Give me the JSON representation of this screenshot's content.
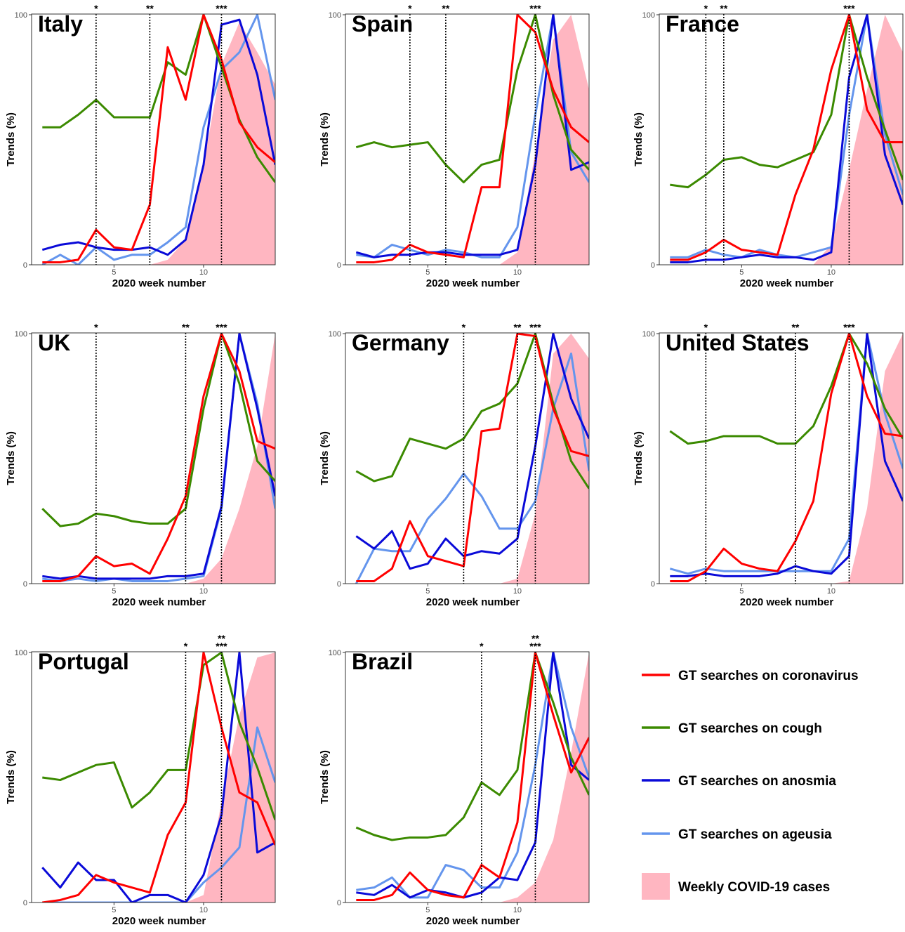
{
  "legend": [
    {
      "key": "coronavirus",
      "label": "GT searches on coronavirus",
      "color": "#ff0000",
      "type": "line"
    },
    {
      "key": "cough",
      "label": "GT searches on cough",
      "color": "#3b8a00",
      "type": "line"
    },
    {
      "key": "anosmia",
      "label": "GT searches on anosmia",
      "color": "#0a0ad8",
      "type": "line"
    },
    {
      "key": "ageusia",
      "label": "GT searches on ageusia",
      "color": "#6495ed",
      "type": "line"
    },
    {
      "key": "cases",
      "label": "Weekly COVID-19 cases",
      "color": "#ffb6c1",
      "type": "area"
    }
  ],
  "chart_data": [
    {
      "type": "line",
      "title": "Italy",
      "xlabel": "2020 week number",
      "ylabel": "Trends (%)",
      "xlim": [
        1,
        14
      ],
      "ylim": [
        0,
        100
      ],
      "x_ticks": [
        5,
        10
      ],
      "y_ticks": [
        0,
        100
      ],
      "x": [
        1,
        2,
        3,
        4,
        5,
        6,
        7,
        8,
        9,
        10,
        11,
        12,
        13,
        14
      ],
      "markers": [
        {
          "week": 4,
          "label": "*"
        },
        {
          "week": 7,
          "label": "**"
        },
        {
          "week": 11,
          "label": "***"
        }
      ],
      "series": [
        {
          "key": "cases",
          "values": [
            0,
            0,
            0,
            0,
            0,
            0,
            0,
            2,
            10,
            40,
            80,
            97,
            85,
            72
          ]
        },
        {
          "key": "ageusia",
          "values": [
            0,
            4,
            0,
            7,
            2,
            4,
            4,
            9,
            15,
            55,
            78,
            85,
            100,
            66
          ]
        },
        {
          "key": "anosmia",
          "values": [
            6,
            8,
            9,
            7,
            6,
            6,
            7,
            4,
            10,
            40,
            96,
            98,
            76,
            40
          ]
        },
        {
          "key": "cough",
          "values": [
            55,
            55,
            60,
            66,
            59,
            59,
            59,
            81,
            76,
            100,
            79,
            58,
            43,
            33
          ]
        },
        {
          "key": "coronavirus",
          "values": [
            1,
            1,
            2,
            14,
            7,
            6,
            24,
            87,
            66,
            100,
            82,
            57,
            47,
            41
          ]
        }
      ]
    },
    {
      "type": "line",
      "title": "Spain",
      "xlabel": "2020 week number",
      "ylabel": "Trends (%)",
      "xlim": [
        1,
        14
      ],
      "ylim": [
        0,
        100
      ],
      "x_ticks": [
        5,
        10
      ],
      "y_ticks": [
        0,
        100
      ],
      "x": [
        1,
        2,
        3,
        4,
        5,
        6,
        7,
        8,
        9,
        10,
        11,
        12,
        13,
        14
      ],
      "markers": [
        {
          "week": 4,
          "label": "*"
        },
        {
          "week": 6,
          "label": "**"
        },
        {
          "week": 11,
          "label": "***"
        }
      ],
      "series": [
        {
          "key": "cases",
          "values": [
            0,
            0,
            0,
            0,
            0,
            0,
            0,
            0,
            0,
            5,
            45,
            90,
            100,
            70
          ]
        },
        {
          "key": "ageusia",
          "values": [
            4,
            3,
            8,
            6,
            4,
            6,
            5,
            3,
            3,
            15,
            60,
            100,
            45,
            33
          ]
        },
        {
          "key": "anosmia",
          "values": [
            5,
            3,
            4,
            4,
            5,
            5,
            4,
            4,
            4,
            6,
            40,
            100,
            38,
            41
          ]
        },
        {
          "key": "cough",
          "values": [
            47,
            49,
            47,
            48,
            49,
            40,
            33,
            40,
            42,
            78,
            100,
            68,
            46,
            38
          ]
        },
        {
          "key": "coronavirus",
          "values": [
            1,
            1,
            2,
            8,
            5,
            4,
            3,
            31,
            31,
            100,
            93,
            70,
            55,
            49
          ]
        }
      ]
    },
    {
      "type": "line",
      "title": "France",
      "xlabel": "2020 week number",
      "ylabel": "Trends (%)",
      "xlim": [
        1,
        14
      ],
      "ylim": [
        0,
        100
      ],
      "x_ticks": [
        5,
        10
      ],
      "y_ticks": [
        0,
        100
      ],
      "x": [
        1,
        2,
        3,
        4,
        5,
        6,
        7,
        8,
        9,
        10,
        11,
        12,
        13,
        14
      ],
      "markers": [
        {
          "week": 3,
          "label": "*"
        },
        {
          "week": 4,
          "label": "**"
        },
        {
          "week": 11,
          "label": "***"
        }
      ],
      "series": [
        {
          "key": "cases",
          "values": [
            0,
            0,
            0,
            0,
            0,
            0,
            0,
            0,
            0,
            8,
            38,
            70,
            100,
            85
          ]
        },
        {
          "key": "ageusia",
          "values": [
            3,
            3,
            6,
            4,
            3,
            6,
            4,
            3,
            5,
            7,
            60,
            100,
            52,
            28
          ]
        },
        {
          "key": "anosmia",
          "values": [
            1,
            1,
            2,
            2,
            3,
            4,
            3,
            3,
            2,
            5,
            75,
            100,
            44,
            24
          ]
        },
        {
          "key": "cough",
          "values": [
            32,
            31,
            36,
            42,
            43,
            40,
            39,
            42,
            45,
            60,
            100,
            75,
            54,
            34
          ]
        },
        {
          "key": "coronavirus",
          "values": [
            2,
            2,
            5,
            10,
            6,
            5,
            4,
            28,
            46,
            78,
            100,
            62,
            49,
            49
          ]
        }
      ]
    },
    {
      "type": "line",
      "title": "UK",
      "xlabel": "2020 week number",
      "ylabel": "Trends (%)",
      "xlim": [
        1,
        14
      ],
      "ylim": [
        0,
        100
      ],
      "x_ticks": [
        5,
        10
      ],
      "y_ticks": [
        0,
        100
      ],
      "x": [
        1,
        2,
        3,
        4,
        5,
        6,
        7,
        8,
        9,
        10,
        11,
        12,
        13,
        14
      ],
      "markers": [
        {
          "week": 4,
          "label": "*"
        },
        {
          "week": 9,
          "label": "**"
        },
        {
          "week": 11,
          "label": "***"
        }
      ],
      "series": [
        {
          "key": "cases",
          "values": [
            0,
            0,
            0,
            0,
            0,
            0,
            0,
            0,
            0,
            2,
            10,
            30,
            55,
            100
          ]
        },
        {
          "key": "ageusia",
          "values": [
            2,
            1,
            2,
            1,
            2,
            1,
            1,
            1,
            2,
            3,
            30,
            100,
            72,
            30
          ]
        },
        {
          "key": "anosmia",
          "values": [
            3,
            2,
            3,
            2,
            2,
            2,
            2,
            3,
            3,
            4,
            31,
            100,
            70,
            35
          ]
        },
        {
          "key": "cough",
          "values": [
            30,
            23,
            24,
            28,
            27,
            25,
            24,
            24,
            30,
            70,
            100,
            80,
            49,
            41
          ]
        },
        {
          "key": "coronavirus",
          "values": [
            1,
            1,
            3,
            11,
            7,
            8,
            4,
            18,
            35,
            75,
            100,
            85,
            57,
            54
          ]
        }
      ]
    },
    {
      "type": "line",
      "title": "Germany",
      "xlabel": "2020 week number",
      "ylabel": "Trends (%)",
      "xlim": [
        1,
        14
      ],
      "ylim": [
        0,
        100
      ],
      "x_ticks": [
        5,
        10
      ],
      "y_ticks": [
        0,
        100
      ],
      "x": [
        1,
        2,
        3,
        4,
        5,
        6,
        7,
        8,
        9,
        10,
        11,
        12,
        13,
        14
      ],
      "markers": [
        {
          "week": 7,
          "label": "*"
        },
        {
          "week": 10,
          "label": "**"
        },
        {
          "week": 11,
          "label": "***"
        }
      ],
      "series": [
        {
          "key": "cases",
          "values": [
            0,
            0,
            0,
            0,
            0,
            0,
            0,
            0,
            0,
            2,
            28,
            92,
            100,
            90
          ]
        },
        {
          "key": "ageusia",
          "values": [
            0,
            14,
            13,
            13,
            26,
            34,
            44,
            35,
            22,
            22,
            33,
            70,
            92,
            45
          ]
        },
        {
          "key": "anosmia",
          "values": [
            19,
            14,
            21,
            6,
            8,
            18,
            11,
            13,
            12,
            18,
            55,
            100,
            74,
            58
          ]
        },
        {
          "key": "cough",
          "values": [
            45,
            41,
            43,
            58,
            56,
            54,
            58,
            69,
            72,
            80,
            100,
            72,
            49,
            38
          ]
        },
        {
          "key": "coronavirus",
          "values": [
            1,
            1,
            6,
            25,
            11,
            9,
            7,
            61,
            62,
            100,
            99,
            70,
            53,
            51
          ]
        }
      ]
    },
    {
      "type": "line",
      "title": "United States",
      "xlabel": "2020 week number",
      "ylabel": "Trends (%)",
      "xlim": [
        1,
        14
      ],
      "ylim": [
        0,
        100
      ],
      "x_ticks": [
        5,
        10
      ],
      "y_ticks": [
        0,
        100
      ],
      "x": [
        1,
        2,
        3,
        4,
        5,
        6,
        7,
        8,
        9,
        10,
        11,
        12,
        13,
        14
      ],
      "markers": [
        {
          "week": 3,
          "label": "*"
        },
        {
          "week": 8,
          "label": "**"
        },
        {
          "week": 11,
          "label": "***"
        }
      ],
      "series": [
        {
          "key": "cases",
          "values": [
            0,
            0,
            0,
            0,
            0,
            0,
            0,
            0,
            0,
            0,
            1,
            30,
            85,
            100
          ]
        },
        {
          "key": "ageusia",
          "values": [
            6,
            4,
            6,
            5,
            5,
            5,
            5,
            5,
            5,
            5,
            18,
            100,
            68,
            46
          ]
        },
        {
          "key": "anosmia",
          "values": [
            3,
            3,
            4,
            3,
            3,
            3,
            4,
            7,
            5,
            4,
            11,
            100,
            49,
            33
          ]
        },
        {
          "key": "cough",
          "values": [
            61,
            56,
            57,
            59,
            59,
            59,
            56,
            56,
            63,
            79,
            100,
            88,
            70,
            58
          ]
        },
        {
          "key": "coronavirus",
          "values": [
            1,
            1,
            5,
            14,
            8,
            6,
            5,
            17,
            33,
            76,
            100,
            75,
            60,
            59
          ]
        }
      ]
    },
    {
      "type": "line",
      "title": "Portugal",
      "xlabel": "2020 week number",
      "ylabel": "Trends (%)",
      "xlim": [
        1,
        14
      ],
      "ylim": [
        0,
        100
      ],
      "x_ticks": [
        5,
        10
      ],
      "y_ticks": [
        0,
        100
      ],
      "x": [
        1,
        2,
        3,
        4,
        5,
        6,
        7,
        8,
        9,
        10,
        11,
        12,
        13,
        14
      ],
      "markers": [
        {
          "week": 9,
          "label": "*"
        },
        {
          "week": 11,
          "label": "**\n***"
        }
      ],
      "series": [
        {
          "key": "cases",
          "values": [
            0,
            0,
            0,
            0,
            0,
            0,
            0,
            0,
            0,
            3,
            40,
            75,
            98,
            100
          ]
        },
        {
          "key": "ageusia",
          "values": [
            0,
            0,
            0,
            0,
            0,
            0,
            0,
            0,
            0,
            8,
            14,
            22,
            70,
            48
          ]
        },
        {
          "key": "anosmia",
          "values": [
            14,
            6,
            16,
            9,
            9,
            0,
            3,
            3,
            0,
            11,
            35,
            100,
            20,
            24
          ]
        },
        {
          "key": "cough",
          "values": [
            50,
            49,
            52,
            55,
            56,
            38,
            44,
            53,
            53,
            95,
            100,
            72,
            54,
            33
          ]
        },
        {
          "key": "coronavirus",
          "values": [
            0,
            1,
            3,
            11,
            8,
            6,
            4,
            27,
            40,
            100,
            70,
            44,
            40,
            23
          ]
        }
      ]
    },
    {
      "type": "line",
      "title": "Brazil",
      "xlabel": "2020 week number",
      "ylabel": "Trends (%)",
      "xlim": [
        1,
        14
      ],
      "ylim": [
        0,
        100
      ],
      "x_ticks": [
        5,
        10
      ],
      "y_ticks": [
        0,
        100
      ],
      "x": [
        1,
        2,
        3,
        4,
        5,
        6,
        7,
        8,
        9,
        10,
        11,
        12,
        13,
        14
      ],
      "markers": [
        {
          "week": 8,
          "label": "*"
        },
        {
          "week": 11,
          "label": "**\n***"
        }
      ],
      "series": [
        {
          "key": "cases",
          "values": [
            0,
            0,
            0,
            0,
            0,
            0,
            0,
            0,
            0,
            2,
            8,
            25,
            60,
            100
          ]
        },
        {
          "key": "ageusia",
          "values": [
            5,
            6,
            10,
            2,
            2,
            15,
            13,
            6,
            6,
            20,
            55,
            100,
            70,
            50
          ]
        },
        {
          "key": "anosmia",
          "values": [
            4,
            3,
            7,
            2,
            5,
            4,
            2,
            4,
            10,
            9,
            24,
            100,
            55,
            49
          ]
        },
        {
          "key": "cough",
          "values": [
            30,
            27,
            25,
            26,
            26,
            27,
            34,
            48,
            43,
            53,
            100,
            80,
            58,
            43
          ]
        },
        {
          "key": "coronavirus",
          "values": [
            1,
            1,
            3,
            12,
            5,
            3,
            2,
            15,
            10,
            32,
            100,
            75,
            52,
            66
          ]
        }
      ]
    }
  ]
}
